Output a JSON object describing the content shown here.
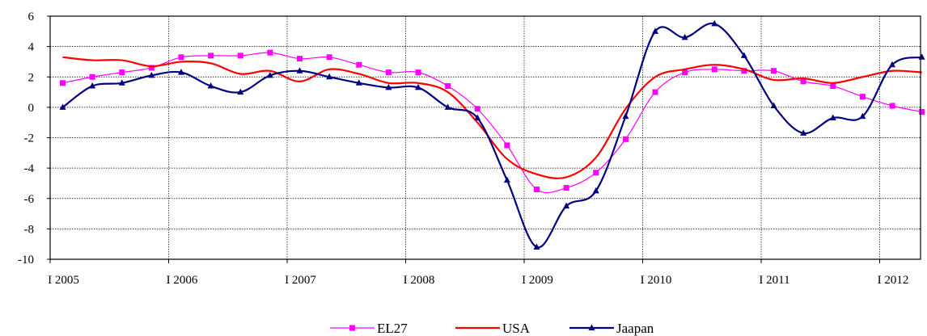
{
  "chart_data": {
    "type": "line",
    "title": "",
    "xlabel": "",
    "ylabel": "",
    "ylim": [
      -10,
      6
    ],
    "yticks": [
      -10,
      -8,
      -6,
      -4,
      -2,
      0,
      2,
      4,
      6
    ],
    "x_tick_labels": [
      "I 2005",
      "I 2006",
      "I 2007",
      "I 2008",
      "I 2009",
      "I 2010",
      "I 2011",
      "I 2012"
    ],
    "x": [
      "I 2005",
      "II 2005",
      "III 2005",
      "IV 2005",
      "I 2006",
      "II 2006",
      "III 2006",
      "IV 2006",
      "I 2007",
      "II 2007",
      "III 2007",
      "IV 2007",
      "I 2008",
      "II 2008",
      "III 2008",
      "IV 2008",
      "I 2009",
      "II 2009",
      "III 2009",
      "IV 2009",
      "I 2010",
      "II 2010",
      "III 2010",
      "IV 2010",
      "I 2011",
      "II 2011",
      "III 2011",
      "IV 2011",
      "I 2012",
      "II 2012"
    ],
    "grid": true,
    "legend_position": "bottom",
    "series": [
      {
        "name": "EL27",
        "color": "#ff00ff",
        "marker": "square",
        "values": [
          1.6,
          2.0,
          2.3,
          2.6,
          3.3,
          3.4,
          3.4,
          3.6,
          3.2,
          3.3,
          2.8,
          2.3,
          2.3,
          1.4,
          -0.1,
          -2.5,
          -5.4,
          -5.3,
          -4.3,
          -2.1,
          1.0,
          2.3,
          2.5,
          2.4,
          2.4,
          1.7,
          1.4,
          0.7,
          0.1,
          -0.3
        ]
      },
      {
        "name": "USA",
        "color": "#ff0000",
        "marker": "none",
        "values": [
          3.3,
          3.1,
          3.1,
          2.7,
          3.0,
          2.9,
          2.2,
          2.4,
          1.7,
          2.5,
          2.2,
          1.6,
          1.6,
          1.0,
          -1.0,
          -3.4,
          -4.4,
          -4.6,
          -3.3,
          -0.1,
          2.0,
          2.5,
          2.8,
          2.5,
          1.8,
          1.9,
          1.6,
          2.0,
          2.4,
          2.3
        ]
      },
      {
        "name": "Jaapan",
        "color": "#000080",
        "marker": "triangle",
        "values": [
          0.0,
          1.4,
          1.6,
          2.1,
          2.3,
          1.4,
          1.0,
          2.1,
          2.4,
          2.0,
          1.6,
          1.3,
          1.3,
          0.0,
          -0.7,
          -4.8,
          -9.2,
          -6.5,
          -5.5,
          -0.6,
          5.0,
          4.6,
          5.5,
          3.4,
          0.1,
          -1.7,
          -0.7,
          -0.6,
          2.8,
          3.3
        ]
      }
    ]
  }
}
